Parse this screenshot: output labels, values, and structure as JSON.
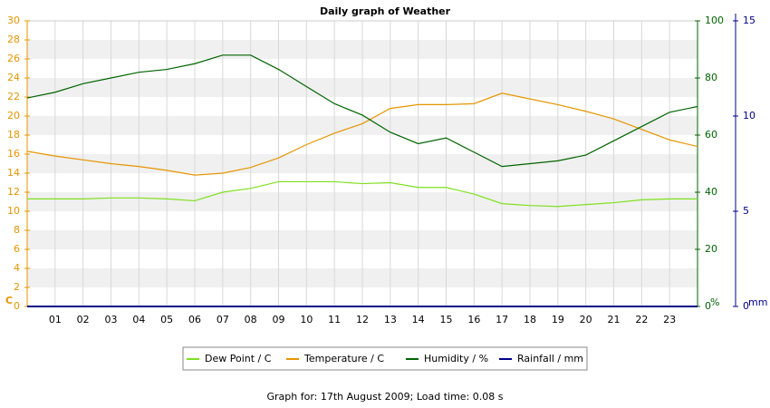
{
  "chart_data": {
    "type": "line",
    "title": "Daily graph of Weather",
    "footer": "Graph for: 17th August 2009; Load time: 0.08 s",
    "y_label": "C",
    "y2_label": "%",
    "y3_label": "mm",
    "y_color": "#e69500",
    "y2_color": "#006400",
    "y3_color": "#00008b",
    "grid": true,
    "x": [
      0,
      1,
      2,
      3,
      4,
      5,
      6,
      7,
      8,
      9,
      10,
      11,
      12,
      13,
      14,
      15,
      16,
      17,
      18,
      19,
      20,
      21,
      22,
      23,
      24
    ],
    "xlim": [
      0,
      24
    ],
    "xticks": [
      {
        "value": 1,
        "label": "01"
      },
      {
        "value": 2,
        "label": "02"
      },
      {
        "value": 3,
        "label": "03"
      },
      {
        "value": 4,
        "label": "04"
      },
      {
        "value": 5,
        "label": "05"
      },
      {
        "value": 6,
        "label": "06"
      },
      {
        "value": 7,
        "label": "07"
      },
      {
        "value": 8,
        "label": "08"
      },
      {
        "value": 9,
        "label": "09"
      },
      10,
      11,
      12,
      13,
      14,
      15,
      16,
      17,
      18,
      19,
      20,
      21,
      22,
      23
    ],
    "ylim": [
      0,
      30
    ],
    "yticks": [
      0,
      2,
      4,
      6,
      8,
      10,
      12,
      14,
      16,
      18,
      20,
      22,
      24,
      26,
      28,
      30
    ],
    "y2lim": [
      0,
      100
    ],
    "y2ticks": [
      0,
      20,
      40,
      60,
      80,
      100
    ],
    "y3lim": [
      0,
      15
    ],
    "y3ticks": [
      0,
      5,
      10,
      15
    ],
    "series": [
      {
        "name": "Dew Point / C",
        "color": "#7fe01f",
        "axis": "y",
        "values": [
          11.3,
          11.3,
          11.3,
          11.4,
          11.4,
          11.3,
          11.1,
          12.0,
          12.4,
          13.1,
          13.1,
          13.1,
          12.9,
          13.0,
          12.5,
          12.5,
          11.8,
          10.8,
          10.6,
          10.5,
          10.7,
          10.9,
          11.2,
          11.3,
          11.3
        ]
      },
      {
        "name": "Temperature / C",
        "color": "#e69500",
        "axis": "y",
        "values": [
          16.3,
          15.8,
          15.4,
          15.0,
          14.7,
          14.3,
          13.8,
          14.0,
          14.6,
          15.6,
          17.0,
          18.2,
          19.2,
          20.8,
          21.2,
          21.2,
          21.3,
          22.4,
          21.8,
          21.2,
          20.5,
          19.7,
          18.6,
          17.5,
          16.8
        ]
      },
      {
        "name": "Humidity / %",
        "color": "#006400",
        "axis": "y2",
        "values": [
          73,
          75,
          78,
          80,
          82,
          83,
          85,
          88,
          88,
          83,
          77,
          71,
          67,
          61,
          57,
          59,
          54,
          49,
          50,
          51,
          53,
          58,
          63,
          68,
          70
        ]
      },
      {
        "name": "Rainfall / mm",
        "color": "#00008b",
        "axis": "y3",
        "values": [
          0,
          0,
          0,
          0,
          0,
          0,
          0,
          0,
          0,
          0,
          0,
          0,
          0,
          0,
          0,
          0,
          0,
          0,
          0,
          0,
          0,
          0,
          0,
          0,
          0
        ]
      }
    ]
  }
}
